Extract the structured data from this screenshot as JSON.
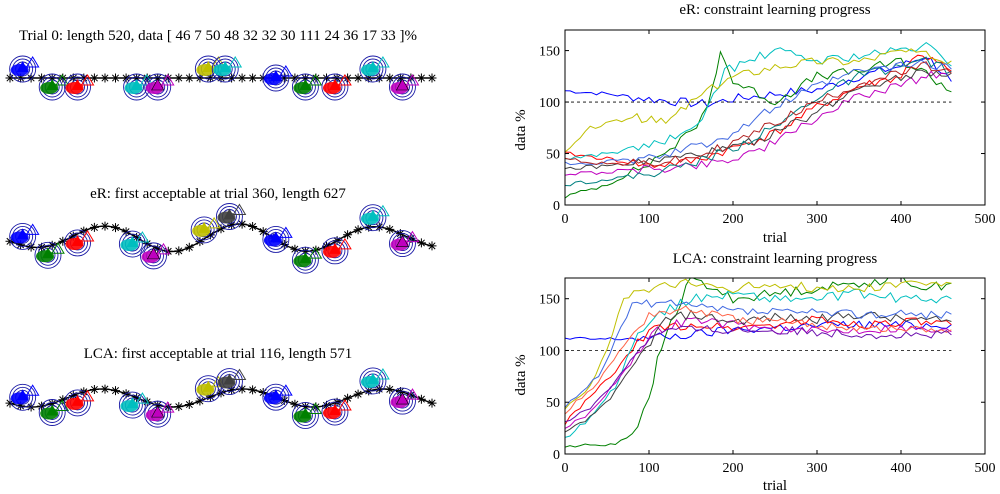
{
  "colors": {
    "palette": [
      "#0000ff",
      "#008000",
      "#ff0000",
      "#00bfbf",
      "#bf00bf",
      "#bfbf00",
      "#404040",
      "#1e90ff"
    ],
    "star": "#000000",
    "ring": "#1a1aa6"
  },
  "left_panels": [
    {
      "title": "Trial 0: length 520, data [ 46 7 50 48 32 32 30 111 24 36 17 33 ]%",
      "path_shape": "flat",
      "clusters": [
        {
          "pos": 0.03,
          "color": 0,
          "offset": -1
        },
        {
          "pos": 0.1,
          "color": 1,
          "offset": 1
        },
        {
          "pos": 0.16,
          "color": 2,
          "offset": 1
        },
        {
          "pos": 0.3,
          "color": 3,
          "offset": 1
        },
        {
          "pos": 0.35,
          "color": 4,
          "offset": 1
        },
        {
          "pos": 0.47,
          "color": 5,
          "offset": -1
        },
        {
          "pos": 0.51,
          "color": 3,
          "offset": -1
        },
        {
          "pos": 0.63,
          "color": 0,
          "offset": 0
        },
        {
          "pos": 0.7,
          "color": 1,
          "offset": 1
        },
        {
          "pos": 0.77,
          "color": 2,
          "offset": 1
        },
        {
          "pos": 0.86,
          "color": 3,
          "offset": -1
        },
        {
          "pos": 0.93,
          "color": 4,
          "offset": 1
        }
      ]
    },
    {
      "title": "eR: first acceptable at trial 360, length 627",
      "path_shape": "wavy",
      "clusters": [
        {
          "pos": 0.03,
          "color": 0,
          "offset": -1
        },
        {
          "pos": 0.09,
          "color": 1,
          "offset": 1
        },
        {
          "pos": 0.16,
          "color": 2,
          "offset": 1
        },
        {
          "pos": 0.29,
          "color": 3,
          "offset": 1
        },
        {
          "pos": 0.34,
          "color": 4,
          "offset": 1
        },
        {
          "pos": 0.46,
          "color": 5,
          "offset": -1
        },
        {
          "pos": 0.52,
          "color": 6,
          "offset": -1
        },
        {
          "pos": 0.63,
          "color": 0,
          "offset": 0
        },
        {
          "pos": 0.7,
          "color": 1,
          "offset": 1
        },
        {
          "pos": 0.77,
          "color": 2,
          "offset": 1
        },
        {
          "pos": 0.86,
          "color": 3,
          "offset": -1
        },
        {
          "pos": 0.93,
          "color": 4,
          "offset": 1
        }
      ]
    },
    {
      "title": "LCA: first acceptable at trial 116, length 571",
      "path_shape": "gentle",
      "clusters": [
        {
          "pos": 0.03,
          "color": 0,
          "offset": -1
        },
        {
          "pos": 0.1,
          "color": 1,
          "offset": 1
        },
        {
          "pos": 0.16,
          "color": 2,
          "offset": 1
        },
        {
          "pos": 0.29,
          "color": 3,
          "offset": 1
        },
        {
          "pos": 0.35,
          "color": 4,
          "offset": 1
        },
        {
          "pos": 0.47,
          "color": 5,
          "offset": -1
        },
        {
          "pos": 0.52,
          "color": 6,
          "offset": -1
        },
        {
          "pos": 0.63,
          "color": 0,
          "offset": 0
        },
        {
          "pos": 0.7,
          "color": 1,
          "offset": 1
        },
        {
          "pos": 0.77,
          "color": 2,
          "offset": 1
        },
        {
          "pos": 0.86,
          "color": 3,
          "offset": -1
        },
        {
          "pos": 0.93,
          "color": 4,
          "offset": 1
        }
      ]
    }
  ],
  "chart_data": [
    {
      "type": "line",
      "title": "eR: constraint learning progress",
      "xlabel": "trial",
      "ylabel": "data %",
      "xlim": [
        0,
        500
      ],
      "ylim": [
        0,
        170
      ],
      "xticks": [
        0,
        100,
        200,
        300,
        400,
        500
      ],
      "yticks": [
        0,
        50,
        100,
        150
      ],
      "reference_line": 100,
      "series": [
        {
          "name": "blue",
          "color": "#0000ff",
          "x": [
            0,
            50,
            100,
            150,
            170,
            200,
            250,
            300,
            350,
            400,
            430,
            460
          ],
          "y": [
            111,
            108,
            103,
            99,
            98,
            103,
            108,
            112,
            125,
            135,
            145,
            120
          ]
        },
        {
          "name": "darkgreen",
          "color": "#008000",
          "x": [
            0,
            50,
            100,
            150,
            170,
            185,
            200,
            250,
            300,
            350,
            400,
            430,
            460
          ],
          "y": [
            8,
            20,
            40,
            70,
            95,
            150,
            120,
            100,
            125,
            130,
            140,
            128,
            110
          ]
        },
        {
          "name": "red",
          "color": "#ff0000",
          "x": [
            0,
            50,
            100,
            150,
            200,
            250,
            300,
            350,
            400,
            420,
            460
          ],
          "y": [
            50,
            45,
            38,
            42,
            55,
            70,
            95,
            115,
            125,
            148,
            130
          ]
        },
        {
          "name": "cyan",
          "color": "#00bfbf",
          "x": [
            0,
            50,
            100,
            150,
            170,
            190,
            220,
            250,
            300,
            350,
            400,
            430,
            460
          ],
          "y": [
            45,
            50,
            58,
            70,
            95,
            130,
            140,
            150,
            140,
            145,
            150,
            155,
            135
          ]
        },
        {
          "name": "magenta",
          "color": "#bf00bf",
          "x": [
            0,
            50,
            100,
            150,
            200,
            250,
            300,
            350,
            400,
            430,
            460
          ],
          "y": [
            30,
            32,
            35,
            38,
            45,
            60,
            85,
            105,
            118,
            125,
            130
          ]
        },
        {
          "name": "olive",
          "color": "#bfbf00",
          "x": [
            0,
            30,
            80,
            120,
            150,
            200,
            250,
            300,
            350,
            400,
            430,
            460
          ],
          "y": [
            50,
            75,
            85,
            80,
            100,
            125,
            135,
            140,
            140,
            150,
            145,
            140
          ]
        },
        {
          "name": "gray",
          "color": "#404040",
          "x": [
            0,
            50,
            100,
            150,
            200,
            250,
            300,
            350,
            400,
            430,
            460
          ],
          "y": [
            35,
            38,
            42,
            48,
            55,
            70,
            90,
            115,
            125,
            130,
            128
          ]
        },
        {
          "name": "teal",
          "color": "#008080",
          "x": [
            0,
            50,
            100,
            150,
            200,
            250,
            300,
            350,
            400,
            430,
            460
          ],
          "y": [
            20,
            25,
            30,
            40,
            55,
            75,
            105,
            125,
            135,
            140,
            130
          ]
        },
        {
          "name": "lightblue",
          "color": "#4169e1",
          "x": [
            0,
            50,
            100,
            150,
            200,
            250,
            300,
            350,
            400,
            430,
            460
          ],
          "y": [
            40,
            42,
            45,
            55,
            70,
            95,
            115,
            130,
            135,
            138,
            132
          ]
        },
        {
          "name": "maroon",
          "color": "#b22222",
          "x": [
            0,
            50,
            100,
            150,
            200,
            250,
            300,
            350,
            400,
            430,
            460
          ],
          "y": [
            45,
            40,
            40,
            45,
            60,
            80,
            100,
            118,
            128,
            135,
            128
          ]
        }
      ]
    },
    {
      "type": "line",
      "title": "LCA: constraint learning progress",
      "xlabel": "trial",
      "ylabel": "data %",
      "xlim": [
        0,
        500
      ],
      "ylim": [
        0,
        170
      ],
      "xticks": [
        0,
        100,
        200,
        300,
        400,
        500
      ],
      "yticks": [
        0,
        50,
        100,
        150
      ],
      "reference_line": 100,
      "series": [
        {
          "name": "blue",
          "color": "#0000ff",
          "x": [
            0,
            60,
            80,
            100,
            150,
            200,
            250,
            300,
            350,
            400,
            460
          ],
          "y": [
            111,
            111,
            112,
            112,
            115,
            120,
            122,
            124,
            125,
            124,
            125
          ]
        },
        {
          "name": "darkgreen",
          "color": "#008000",
          "x": [
            0,
            60,
            80,
            100,
            110,
            120,
            150,
            200,
            250,
            300,
            350,
            400,
            430,
            460
          ],
          "y": [
            7,
            10,
            20,
            50,
            90,
            115,
            170,
            150,
            155,
            160,
            165,
            170,
            160,
            165
          ]
        },
        {
          "name": "red",
          "color": "#ff0000",
          "x": [
            0,
            30,
            60,
            80,
            100,
            150,
            200,
            250,
            300,
            350,
            400,
            460
          ],
          "y": [
            30,
            55,
            80,
            100,
            120,
            125,
            122,
            125,
            130,
            125,
            128,
            125
          ]
        },
        {
          "name": "cyan",
          "color": "#00bfbf",
          "x": [
            0,
            30,
            60,
            80,
            100,
            150,
            200,
            250,
            300,
            350,
            400,
            460
          ],
          "y": [
            15,
            35,
            65,
            105,
            130,
            150,
            155,
            150,
            150,
            155,
            150,
            150
          ]
        },
        {
          "name": "magenta",
          "color": "#bf00bf",
          "x": [
            0,
            30,
            60,
            90,
            110,
            150,
            200,
            250,
            300,
            350,
            400,
            460
          ],
          "y": [
            25,
            40,
            70,
            100,
            120,
            130,
            125,
            120,
            118,
            120,
            122,
            118
          ]
        },
        {
          "name": "olive",
          "color": "#bfbf00",
          "x": [
            0,
            30,
            50,
            70,
            100,
            150,
            200,
            250,
            300,
            350,
            400,
            460
          ],
          "y": [
            45,
            65,
            100,
            150,
            160,
            165,
            160,
            165,
            160,
            160,
            165,
            165
          ]
        },
        {
          "name": "gray",
          "color": "#404040",
          "x": [
            0,
            30,
            60,
            90,
            120,
            150,
            200,
            250,
            300,
            350,
            400,
            460
          ],
          "y": [
            20,
            35,
            60,
            95,
            130,
            135,
            128,
            132,
            130,
            135,
            130,
            128
          ]
        },
        {
          "name": "lightblue",
          "color": "#4169e1",
          "x": [
            0,
            20,
            40,
            60,
            80,
            120,
            200,
            300,
            400,
            460
          ],
          "y": [
            45,
            60,
            75,
            110,
            145,
            145,
            138,
            136,
            135,
            135
          ]
        },
        {
          "name": "salmon",
          "color": "#ff6347",
          "x": [
            0,
            20,
            40,
            70,
            100,
            150,
            200,
            300,
            400,
            460
          ],
          "y": [
            40,
            55,
            70,
            105,
            135,
            140,
            130,
            125,
            120,
            120
          ]
        },
        {
          "name": "purple",
          "color": "#6a0dad",
          "x": [
            0,
            30,
            60,
            90,
            120,
            200,
            300,
            400,
            460
          ],
          "y": [
            30,
            45,
            70,
            105,
            120,
            120,
            118,
            115,
            115
          ]
        }
      ]
    }
  ]
}
